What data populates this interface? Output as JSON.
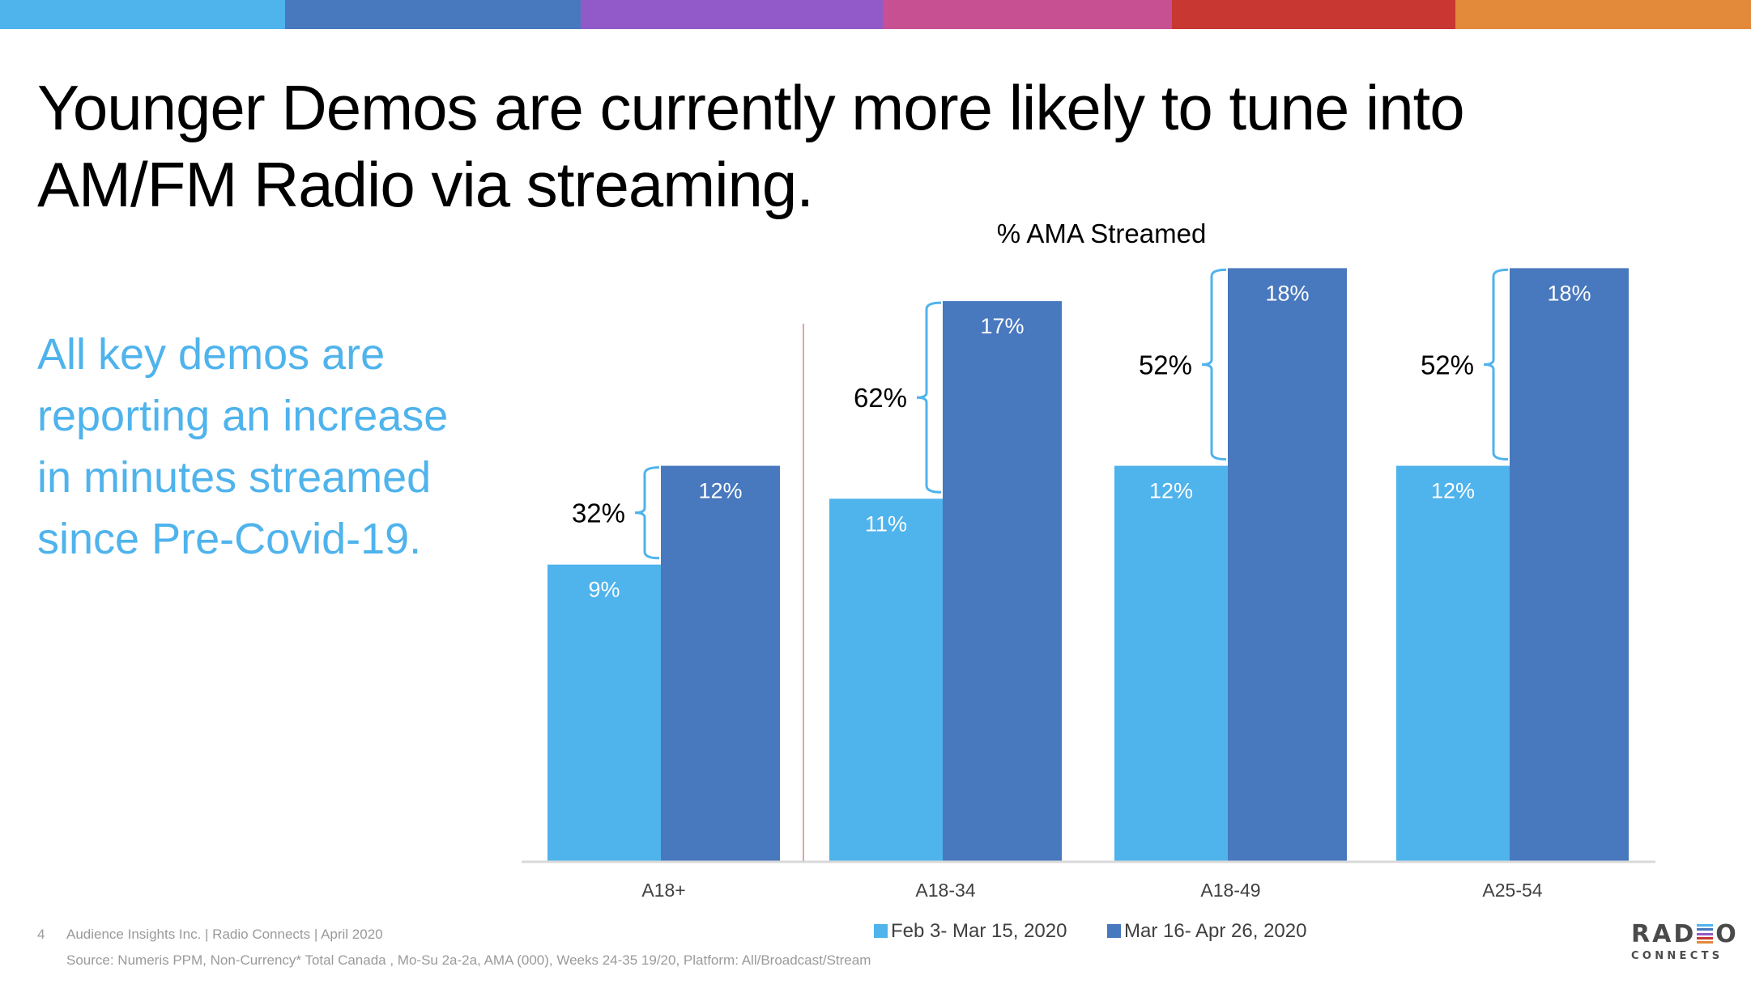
{
  "top_bar_colors": [
    "#4fb3ec",
    "#4878be",
    "#925ac8",
    "#c75093",
    "#c93733",
    "#e2893a"
  ],
  "slide": {
    "title": "Younger Demos are currently more likely to tune into AM/FM Radio via streaming.",
    "side_text": "All key demos are reporting an increase in minutes streamed since Pre-Covid-19."
  },
  "colors": {
    "series_1": "#4fb3ec",
    "series_2": "#4878be",
    "bracket": "#4fb3ec",
    "divider": "#e8a1a1",
    "axis": "#d9d9d9",
    "side_text": "#4fb3ec"
  },
  "chart_data": {
    "type": "bar",
    "title": "% AMA Streamed",
    "xlabel": "",
    "ylabel": "",
    "ylim": [
      0,
      20
    ],
    "grid": false,
    "legend_position": "bottom",
    "categories": [
      "A18+",
      "A18-34",
      "A18-49",
      "A25-54"
    ],
    "series": [
      {
        "name": "Feb 3- Mar 15, 2020",
        "values": [
          9,
          11,
          12,
          12
        ],
        "labels": [
          "9%",
          "11%",
          "12%",
          "12%"
        ]
      },
      {
        "name": "Mar 16- Apr 26, 2020",
        "values": [
          12,
          17,
          18,
          18
        ],
        "labels": [
          "12%",
          "17%",
          "18%",
          "18%"
        ]
      }
    ],
    "annotations": [
      {
        "category": "A18+",
        "text": "32%",
        "type": "bracket-increase"
      },
      {
        "category": "A18-34",
        "text": "62%",
        "type": "bracket-increase"
      },
      {
        "category": "A18-49",
        "text": "52%",
        "type": "bracket-increase"
      },
      {
        "category": "A25-54",
        "text": "52%",
        "type": "bracket-increase"
      }
    ],
    "divider_after_category": "A18+"
  },
  "footer": {
    "page_number": "4",
    "credit": "Audience Insights Inc. | Radio Connects | April 2020",
    "source": "Source:  Numeris PPM, Non-Currency* Total Canada , Mo-Su 2a-2a, AMA (000), Weeks 24-35 19/20, Platform: All/Broadcast/Stream"
  },
  "logo": {
    "word_left": "RAD",
    "word_right": "O",
    "subtitle": "CONNECTS",
    "stripe_colors": [
      "#4fb3ec",
      "#4878be",
      "#925ac8",
      "#c93733",
      "#e2893a"
    ]
  }
}
